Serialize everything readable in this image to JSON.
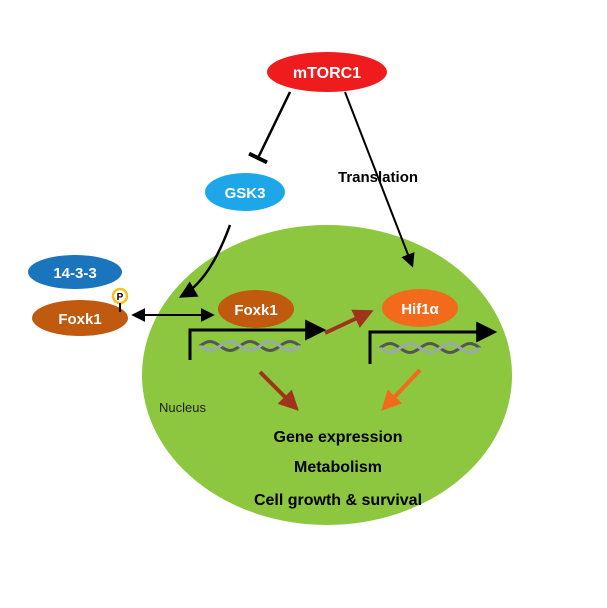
{
  "nodes": {
    "mtorc1": "mTORC1",
    "gsk3": "GSK3",
    "p1433": "14-3-3",
    "foxk1_cyto": "Foxk1",
    "foxk1_nuc": "Foxk1",
    "hif1a": "Hif1α",
    "phospho": "P"
  },
  "labels": {
    "translation": "Translation",
    "nucleus": "Nucleus"
  },
  "outcomes": [
    "Gene expression",
    "Metabolism",
    "Cell growth & survival"
  ],
  "colors": {
    "nucleus": "#8dc63f",
    "mtorc1": "#ee1c1c",
    "gsk3": "#1ea7e8",
    "p1433": "#1b75bc",
    "foxk1": "#c05a0e",
    "hif1a": "#f26b1d",
    "arrow_foxk1": "#a0341a",
    "arrow_hif1a": "#f26b1d",
    "phospho_ring": "#f2c21d"
  }
}
